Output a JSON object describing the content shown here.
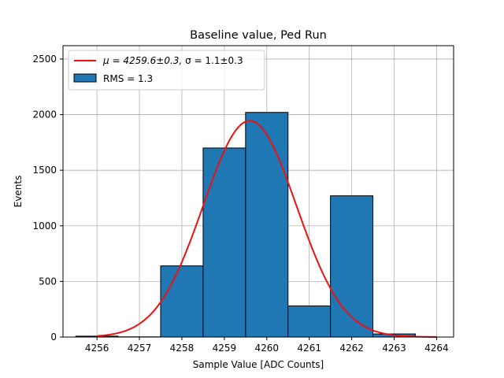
{
  "chart_data": {
    "type": "bar",
    "title": "Baseline value, Ped Run",
    "xlabel": "Sample Value [ADC Counts]",
    "ylabel": "Events",
    "xlim": [
      4255.2,
      4264.4
    ],
    "ylim": [
      0,
      2620
    ],
    "xticks": [
      4256,
      4257,
      4258,
      4259,
      4260,
      4261,
      4262,
      4263,
      4264
    ],
    "yticks": [
      0,
      500,
      1000,
      1500,
      2000,
      2500
    ],
    "grid": true,
    "legend_position": "top-left",
    "histogram": {
      "bin_edges": [
        4255.5,
        4256.5,
        4257.5,
        4258.5,
        4259.5,
        4260.5,
        4261.5,
        4262.5,
        4263.5
      ],
      "counts": [
        8,
        2,
        640,
        1700,
        2020,
        280,
        1270,
        28
      ],
      "color": "#1f77b4",
      "edge_color": "#000000"
    },
    "fit": {
      "mu": 4259.6,
      "sigma": 1.1,
      "amplitude": 1945,
      "x_range": [
        4256.0,
        4264.0
      ],
      "color": "#ee1111"
    },
    "legend": [
      {
        "label_prefix": "μ = 4259.6±0.3, ",
        "label_suffix": "σ = 1.1±0.3",
        "kind": "line"
      },
      {
        "label": "RMS = 1.3",
        "kind": "patch"
      }
    ]
  }
}
